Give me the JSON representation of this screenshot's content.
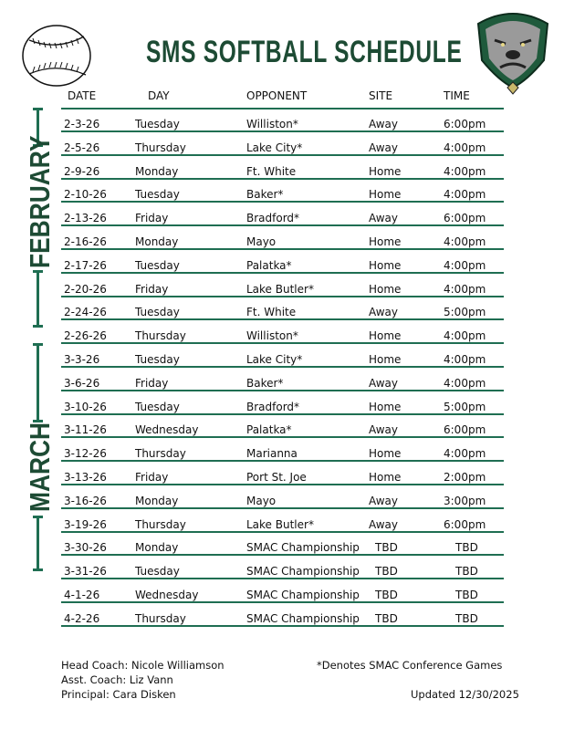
{
  "title": "SMS SOFTBALL SCHEDULE",
  "icons": {
    "left": "softball-icon",
    "right": "bulldog-logo"
  },
  "colors": {
    "accent": "#1f6e52",
    "title": "#1d4b34"
  },
  "headers": {
    "date": "DATE",
    "day": "DAY",
    "opponent": "OPPONENT",
    "site": "SITE",
    "time": "TIME"
  },
  "months": [
    "FEBRUARY",
    "MARCH"
  ],
  "rows": [
    [
      "2-3-26",
      "Tuesday",
      "Williston*",
      "Away",
      "6:00pm"
    ],
    [
      "2-5-26",
      "Thursday",
      "Lake City*",
      "Away",
      "4:00pm"
    ],
    [
      "2-9-26",
      "Monday",
      "Ft. White",
      "Home",
      "4:00pm"
    ],
    [
      "2-10-26",
      "Tuesday",
      "Baker*",
      "Home",
      "4:00pm"
    ],
    [
      "2-13-26",
      "Friday",
      "Bradford*",
      "Away",
      "6:00pm"
    ],
    [
      "2-16-26",
      "Monday",
      "Mayo",
      "Home",
      "4:00pm"
    ],
    [
      "2-17-26",
      "Tuesday",
      "Palatka*",
      "Home",
      "4:00pm"
    ],
    [
      "2-20-26",
      "Friday",
      "Lake Butler*",
      "Home",
      "4:00pm"
    ],
    [
      "2-24-26",
      "Tuesday",
      "Ft. White",
      "Away",
      "5:00pm"
    ],
    [
      "2-26-26",
      "Thursday",
      "Williston*",
      "Home",
      "4:00pm"
    ],
    [
      "3-3-26",
      "Tuesday",
      "Lake City*",
      "Home",
      "4:00pm"
    ],
    [
      "3-6-26",
      "Friday",
      "Baker*",
      "Away",
      "4:00pm"
    ],
    [
      "3-10-26",
      "Tuesday",
      "Bradford*",
      "Home",
      "5:00pm"
    ],
    [
      "3-11-26",
      "Wednesday",
      "Palatka*",
      "Away",
      "6:00pm"
    ],
    [
      "3-12-26",
      "Thursday",
      "Marianna",
      "Home",
      "4:00pm"
    ],
    [
      "3-13-26",
      "Friday",
      "Port St. Joe",
      "Home",
      "2:00pm"
    ],
    [
      "3-16-26",
      "Monday",
      "Mayo",
      "Away",
      "3:00pm"
    ],
    [
      "3-19-26",
      "Thursday",
      "Lake Butler*",
      "Away",
      "6:00pm"
    ],
    [
      "3-30-26",
      "Monday",
      "SMAC Championship",
      "TBD",
      "TBD"
    ],
    [
      "3-31-26",
      "Tuesday",
      "SMAC Championship",
      "TBD",
      "TBD"
    ],
    [
      "4-1-26",
      "Wednesday",
      "SMAC Championship",
      "TBD",
      "TBD"
    ],
    [
      "4-2-26",
      "Thursday",
      "SMAC Championship",
      "TBD",
      "TBD"
    ]
  ],
  "footer": {
    "head_coach": "Head Coach: Nicole Williamson",
    "asst_coach": "Asst. Coach: Liz Vann",
    "principal": "Principal: Cara Disken",
    "note": "*Denotes SMAC Conference Games",
    "updated": "Updated 12/30/2025"
  }
}
